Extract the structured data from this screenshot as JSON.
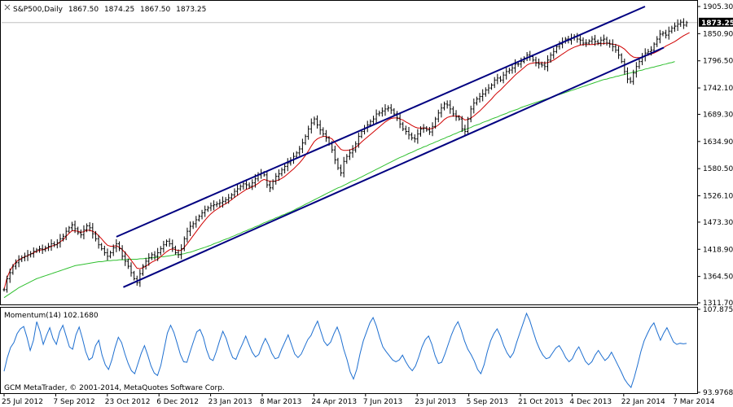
{
  "chart_data": [
    {
      "type": "ohlc",
      "header": {
        "symbol_label": "S&P500,Daily",
        "o": "1867.50",
        "h": "1874.25",
        "l": "1867.50",
        "c": "1873.25"
      },
      "current_price_label": "1873.25",
      "y_ticks": [
        "1905.30",
        "1850.90",
        "1796.50",
        "1742.10",
        "1689.30",
        "1634.90",
        "1580.50",
        "1526.10",
        "1473.30",
        "1418.90",
        "1364.50",
        "1311.70"
      ],
      "ylim": [
        1311.7,
        1905.3
      ],
      "x_tick_labels": [
        "25 Jul 2012",
        "7 Sep 2012",
        "23 Oct 2012",
        "6 Dec 2012",
        "23 Jan 2013",
        "8 Mar 2013",
        "24 Apr 2013",
        "7 Jun 2013",
        "23 Jul 2013",
        "5 Sep 2013",
        "21 Oct 2013",
        "4 Dec 2013",
        "22 Jan 2014",
        "7 Mar 2014"
      ],
      "series": [
        {
          "kind": "price_close",
          "values": [
            1338,
            1360,
            1372,
            1385,
            1392,
            1398,
            1402,
            1405,
            1408,
            1410,
            1415,
            1418,
            1420,
            1418,
            1422,
            1425,
            1430,
            1428,
            1432,
            1440,
            1445,
            1455,
            1462,
            1468,
            1460,
            1452,
            1448,
            1458,
            1466,
            1462,
            1450,
            1440,
            1428,
            1420,
            1412,
            1405,
            1412,
            1422,
            1430,
            1420,
            1405,
            1395,
            1385,
            1372,
            1360,
            1352,
            1370,
            1385,
            1395,
            1402,
            1408,
            1405,
            1412,
            1420,
            1428,
            1435,
            1430,
            1422,
            1412,
            1408,
            1420,
            1440,
            1455,
            1465,
            1470,
            1478,
            1485,
            1492,
            1498,
            1502,
            1506,
            1508,
            1510,
            1512,
            1515,
            1518,
            1522,
            1528,
            1535,
            1540,
            1545,
            1550,
            1548,
            1545,
            1552,
            1560,
            1568,
            1572,
            1568,
            1548,
            1542,
            1555,
            1565,
            1570,
            1578,
            1585,
            1592,
            1598,
            1605,
            1612,
            1620,
            1632,
            1645,
            1660,
            1672,
            1680,
            1668,
            1658,
            1650,
            1642,
            1630,
            1618,
            1598,
            1582,
            1572,
            1595,
            1605,
            1612,
            1618,
            1630,
            1645,
            1655,
            1662,
            1668,
            1675,
            1680,
            1690,
            1692,
            1696,
            1700,
            1702,
            1698,
            1690,
            1682,
            1670,
            1660,
            1655,
            1648,
            1642,
            1640,
            1650,
            1660,
            1662,
            1658,
            1654,
            1665,
            1680,
            1692,
            1702,
            1710,
            1708,
            1700,
            1690,
            1684,
            1680,
            1660,
            1655,
            1680,
            1700,
            1712,
            1720,
            1725,
            1730,
            1738,
            1742,
            1748,
            1758,
            1762,
            1758,
            1768,
            1775,
            1778,
            1782,
            1790,
            1790,
            1795,
            1802,
            1808,
            1805,
            1798,
            1792,
            1790,
            1788,
            1785,
            1798,
            1808,
            1815,
            1825,
            1830,
            1835,
            1840,
            1838,
            1842,
            1845,
            1840,
            1838,
            1832,
            1832,
            1836,
            1840,
            1835,
            1832,
            1838,
            1840,
            1832,
            1830,
            1825,
            1818,
            1808,
            1795,
            1775,
            1760,
            1755,
            1772,
            1785,
            1795,
            1805,
            1812,
            1815,
            1818,
            1830,
            1840,
            1850,
            1852,
            1848,
            1856,
            1862,
            1866,
            1870,
            1874,
            1868,
            1873
          ]
        },
        {
          "kind": "ma_short",
          "color": "#d00000",
          "values": [
            1338,
            1362,
            1376,
            1386,
            1393,
            1398,
            1401,
            1404,
            1406,
            1409,
            1412,
            1415,
            1417,
            1418,
            1420,
            1422,
            1425,
            1427,
            1429,
            1434,
            1438,
            1445,
            1451,
            1456,
            1456,
            1455,
            1453,
            1454,
            1457,
            1457,
            1455,
            1452,
            1446,
            1440,
            1433,
            1427,
            1425,
            1425,
            1426,
            1423,
            1418,
            1412,
            1405,
            1397,
            1389,
            1381,
            1380,
            1382,
            1385,
            1389,
            1393,
            1396,
            1399,
            1404,
            1409,
            1414,
            1418,
            1420,
            1418,
            1416,
            1417,
            1423,
            1430,
            1438,
            1446,
            1454,
            1462,
            1470,
            1477,
            1484,
            1490,
            1495,
            1499,
            1503,
            1507,
            1510,
            1514,
            1518,
            1523,
            1527,
            1531,
            1535,
            1539,
            1541,
            1544,
            1547,
            1551,
            1556,
            1559,
            1557,
            1555,
            1555,
            1556,
            1558,
            1561,
            1565,
            1570,
            1575,
            1580,
            1586,
            1592,
            1599,
            1607,
            1616,
            1626,
            1635,
            1640,
            1643,
            1645,
            1645,
            1643,
            1640,
            1633,
            1626,
            1619,
            1617,
            1617,
            1618,
            1620,
            1623,
            1628,
            1634,
            1639,
            1644,
            1649,
            1654,
            1659,
            1664,
            1669,
            1674,
            1678,
            1681,
            1682,
            1682,
            1680,
            1678,
            1674,
            1671,
            1667,
            1664,
            1662,
            1662,
            1662,
            1661,
            1660,
            1661,
            1664,
            1668,
            1673,
            1679,
            1683,
            1685,
            1686,
            1686,
            1686,
            1682,
            1678,
            1679,
            1682,
            1686,
            1691,
            1696,
            1702,
            1708,
            1714,
            1720,
            1727,
            1733,
            1738,
            1744,
            1750,
            1756,
            1762,
            1768,
            1773,
            1778,
            1783,
            1788,
            1791,
            1792,
            1793,
            1793,
            1793,
            1792,
            1793,
            1795,
            1798,
            1802,
            1806,
            1810,
            1814,
            1818,
            1821,
            1824,
            1826,
            1828,
            1829,
            1829,
            1829,
            1829,
            1830,
            1831,
            1831,
            1831,
            1832,
            1831,
            1830,
            1829,
            1827,
            1824,
            1820,
            1814,
            1808,
            1804,
            1803,
            1803,
            1804,
            1806,
            1808,
            1810,
            1812,
            1815,
            1818,
            1822,
            1826,
            1829,
            1832,
            1835,
            1839,
            1843,
            1847,
            1850,
            1853
          ]
        },
        {
          "kind": "ma_long",
          "color": "#30c030",
          "values": [
            1322,
            1326,
            1330,
            1334,
            1338,
            1342,
            1345,
            1348,
            1351,
            1354,
            1357,
            1360,
            1362,
            1364,
            1366,
            1368,
            1370,
            1372,
            1374,
            1376,
            1378,
            1380,
            1382,
            1384,
            1386,
            1387,
            1388,
            1389,
            1390,
            1391,
            1392,
            1393,
            1394,
            1394,
            1395,
            1396,
            1396,
            1397,
            1397,
            1398,
            1398,
            1398,
            1399,
            1399,
            1399,
            1399,
            1400,
            1400,
            1401,
            1401,
            1402,
            1402,
            1403,
            1404,
            1404,
            1405,
            1406,
            1407,
            1408,
            1408,
            1409,
            1410,
            1412,
            1413,
            1415,
            1417,
            1419,
            1421,
            1423,
            1425,
            1427,
            1430,
            1432,
            1434,
            1437,
            1439,
            1441,
            1444,
            1446,
            1449,
            1451,
            1454,
            1456,
            1459,
            1461,
            1464,
            1466,
            1469,
            1472,
            1474,
            1477,
            1479,
            1482,
            1484,
            1487,
            1489,
            1492,
            1494,
            1497,
            1500,
            1503,
            1506,
            1509,
            1512,
            1515,
            1518,
            1521,
            1524,
            1527,
            1530,
            1533,
            1536,
            1539,
            1542,
            1544,
            1547,
            1550,
            1553,
            1556,
            1558,
            1561,
            1564,
            1567,
            1570,
            1573,
            1576,
            1579,
            1582,
            1585,
            1588,
            1591,
            1594,
            1597,
            1600,
            1603,
            1605,
            1608,
            1611,
            1613,
            1616,
            1619,
            1621,
            1624,
            1626,
            1629,
            1631,
            1634,
            1636,
            1639,
            1641,
            1644,
            1646,
            1649,
            1651,
            1654,
            1656,
            1658,
            1661,
            1663,
            1666,
            1668,
            1670,
            1673,
            1675,
            1677,
            1680,
            1682,
            1684,
            1687,
            1689,
            1691,
            1694,
            1696,
            1698,
            1700,
            1703,
            1705,
            1707,
            1709,
            1711,
            1713,
            1715,
            1717,
            1719,
            1721,
            1723,
            1725,
            1727,
            1729,
            1731,
            1733,
            1735,
            1737,
            1739,
            1741,
            1743,
            1745,
            1747,
            1749,
            1751,
            1753,
            1755,
            1757,
            1759,
            1760,
            1762,
            1763,
            1765,
            1766,
            1768,
            1769,
            1771,
            1772,
            1774,
            1775,
            1777,
            1778,
            1780,
            1781,
            1783,
            1784,
            1786,
            1787,
            1789,
            1790,
            1792,
            1793,
            1795
          ]
        }
      ],
      "trend_channel": {
        "color": "#000080",
        "upper": {
          "x": [
            0.165,
            0.925
          ],
          "y": [
            1444,
            1905.3
          ]
        },
        "lower": {
          "x": [
            0.175,
            0.952
          ],
          "y": [
            1343,
            1823
          ]
        }
      }
    },
    {
      "type": "line",
      "indicator_label": "Momentum(14) 102.1680",
      "y_ticks": [
        "107.8752",
        "93.9768"
      ],
      "ylim": [
        93.9768,
        107.8752
      ],
      "series": [
        {
          "name": "Momentum(14)",
          "color": "#1e6fd0",
          "values": [
            97.5,
            99.8,
            101.5,
            102.3,
            103.8,
            104.6,
            105.0,
            103.2,
            101.0,
            102.7,
            105.8,
            104.2,
            102.0,
            103.5,
            104.8,
            103.0,
            102.0,
            104.1,
            105.2,
            103.4,
            101.6,
            101.2,
            103.6,
            104.9,
            103.0,
            100.8,
            99.4,
            99.8,
            101.8,
            102.7,
            100.2,
            98.6,
            97.8,
            99.4,
            101.5,
            103.2,
            102.3,
            100.4,
            98.8,
            97.6,
            97.1,
            98.8,
            100.5,
            101.8,
            100.2,
            98.4,
            97.2,
            96.8,
            98.5,
            101.2,
            103.9,
            105.2,
            104.0,
            102.2,
            100.3,
            99.1,
            99.0,
            100.8,
            102.5,
            104.1,
            104.5,
            103.2,
            101.1,
            99.6,
            99.3,
            100.8,
            102.6,
            104.2,
            103.0,
            101.2,
            99.8,
            99.5,
            100.9,
            102.1,
            103.4,
            102.0,
            100.7,
            99.9,
            100.3,
            101.8,
            103.0,
            101.9,
            100.5,
            99.6,
            99.8,
            101.2,
            102.4,
            103.6,
            102.0,
            100.4,
            99.8,
            100.4,
            101.6,
            102.8,
            103.5,
            104.8,
            105.9,
            104.2,
            102.5,
            101.8,
            102.4,
            103.8,
            104.9,
            103.4,
            101.2,
            99.5,
            97.4,
            96.2,
            97.8,
            100.4,
            102.6,
            104.1,
            105.6,
            106.5,
            105.1,
            103.2,
            101.6,
            100.8,
            100.1,
            99.4,
            99.1,
            99.4,
            100.2,
            99.1,
            98.2,
            97.6,
            98.4,
            99.9,
            101.6,
            102.8,
            103.4,
            102.0,
            100.1,
            98.8,
            99.0,
            100.4,
            102.0,
            103.6,
            104.9,
            105.8,
            104.4,
            102.6,
            101.2,
            100.3,
            99.2,
            97.8,
            97.1,
            98.6,
            100.8,
            102.6,
            103.8,
            104.6,
            103.4,
            101.8,
            100.6,
            99.8,
            100.6,
            102.4,
            104.0,
            105.6,
            107.2,
            106.0,
            104.2,
            102.5,
            101.2,
            100.2,
            99.6,
            99.8,
            100.6,
            101.4,
            101.8,
            100.9,
            99.8,
            99.1,
            99.6,
            100.8,
            101.6,
            100.4,
            99.2,
            98.6,
            99.1,
            100.2,
            101.0,
            100.1,
            99.3,
            99.8,
            100.7,
            99.6,
            98.5,
            97.4,
            96.2,
            95.4,
            94.8,
            96.5,
            98.6,
            100.8,
            102.6,
            103.8,
            104.9,
            105.6,
            104.1,
            102.7,
            103.9,
            104.8,
            103.6,
            102.4,
            102.0,
            102.2,
            102.1,
            102.168
          ]
        }
      ]
    }
  ],
  "copyright_text": "GCM MetaTrader, © 2001-2014, MetaQuotes Software Corp.",
  "colors": {
    "bars": "#000000",
    "border": "#000000",
    "price_label_bg": "#000000",
    "price_label_fg": "#ffffff"
  }
}
